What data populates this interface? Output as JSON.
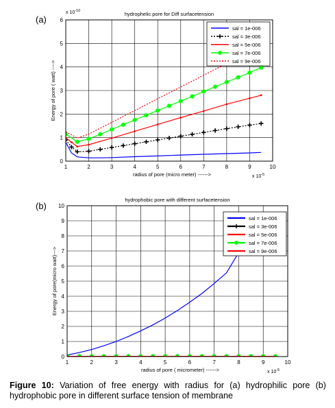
{
  "caption": {
    "label": "Figure 10:",
    "text": "Variation of free energy with radius for (a) hydrophilic pore (b) hydrophobic pore in different surface tension of membrane"
  },
  "colors": {
    "sal_1e-006": "#0000ff",
    "sal_3e-006": "#000000",
    "sal_5e-006": "#ff0000",
    "sal_7e-006": "#00ff00",
    "sal_9e-006": "#ff0000"
  },
  "chart_data": [
    {
      "type": "line",
      "panel_label": "(a)",
      "title": "hydrophelic pore for Diff surfacetension",
      "xlabel": "radius of pore (micro meter) ------>",
      "ylabel": "Energy of pore ( watt) ---->",
      "x_exponent": "x 10",
      "x_exponent_power": "-5",
      "y_exponent": "x 10",
      "y_exponent_power": "-10",
      "xlim": [
        1,
        10
      ],
      "ylim": [
        0,
        6
      ],
      "xticks": [
        "1",
        "2",
        "3",
        "4",
        "5",
        "6",
        "7",
        "8",
        "9",
        "10"
      ],
      "yticks": [
        "0",
        "1",
        "2",
        "3",
        "4",
        "5",
        "6"
      ],
      "grid": true,
      "legend_position": "top-right",
      "series": [
        {
          "name": "sal = 1e-006",
          "color": "#0000ff",
          "style": "solid",
          "marker": "none",
          "x": [
            1,
            1.25,
            1.5,
            2,
            2.5,
            3,
            4,
            5,
            6,
            7,
            8,
            9,
            9.5
          ],
          "y": [
            0.8,
            0.35,
            0.18,
            0.14,
            0.14,
            0.15,
            0.19,
            0.22,
            0.26,
            0.29,
            0.32,
            0.35,
            0.37
          ]
        },
        {
          "name": "sal = 3e-006",
          "color": "#000000",
          "style": "dotted",
          "marker": "plus",
          "x": [
            1,
            1.25,
            1.5,
            2,
            2.5,
            3,
            3.5,
            4,
            4.5,
            5,
            5.5,
            6,
            6.5,
            7,
            7.5,
            8,
            8.5,
            9,
            9.5
          ],
          "y": [
            0.9,
            0.6,
            0.4,
            0.42,
            0.5,
            0.58,
            0.66,
            0.74,
            0.82,
            0.9,
            0.98,
            1.06,
            1.14,
            1.22,
            1.3,
            1.38,
            1.46,
            1.53,
            1.6
          ]
        },
        {
          "name": "sal = 5e-006",
          "color": "#ff0000",
          "style": "solid",
          "marker": "dot",
          "x": [
            1,
            1.25,
            1.5,
            2,
            3,
            4,
            5,
            6,
            7,
            8,
            9,
            9.5
          ],
          "y": [
            1.0,
            0.8,
            0.62,
            0.7,
            0.98,
            1.27,
            1.56,
            1.85,
            2.13,
            2.42,
            2.67,
            2.8
          ]
        },
        {
          "name": "sal = 7e-006",
          "color": "#00ff00",
          "style": "solid",
          "marker": "star",
          "x": [
            1,
            1.5,
            2,
            2.5,
            3,
            3.5,
            4,
            4.5,
            5,
            5.5,
            6,
            6.5,
            7,
            7.5,
            8,
            8.5,
            9,
            9.5
          ],
          "y": [
            1.15,
            0.82,
            0.95,
            1.14,
            1.35,
            1.55,
            1.75,
            1.95,
            2.15,
            2.35,
            2.55,
            2.75,
            2.96,
            3.16,
            3.36,
            3.56,
            3.76,
            3.97
          ]
        },
        {
          "name": "sal = 9e-006",
          "color": "#ff0000",
          "style": "dotted",
          "marker": "none",
          "x": [
            1,
            1.5,
            2,
            3,
            4,
            5,
            6,
            7,
            8,
            8.6
          ],
          "y": [
            1.25,
            0.98,
            1.15,
            1.65,
            2.15,
            2.65,
            3.15,
            3.65,
            4.15,
            4.5
          ]
        }
      ]
    },
    {
      "type": "line",
      "panel_label": "(b)",
      "title": "hydrophobic pore with different surfacetension",
      "xlabel": "radius of pore ( micrometer) ------>",
      "ylabel": "Energy of pore(micro watt)--->",
      "x_exponent": "x 10",
      "x_exponent_power": "-5",
      "xlim": [
        1,
        10
      ],
      "ylim": [
        0,
        10
      ],
      "xticks": [
        "1",
        "2",
        "3",
        "4",
        "5",
        "6",
        "7",
        "8",
        "9",
        "10"
      ],
      "yticks": [
        "0",
        "1",
        "2",
        "3",
        "4",
        "5",
        "6",
        "7",
        "8",
        "9",
        "10"
      ],
      "grid": true,
      "legend_position": "top-right",
      "series": [
        {
          "name": "sal = 1e-006",
          "color": "#0000ff",
          "style": "solid",
          "marker": "none",
          "x": [
            1,
            1.5,
            2,
            2.5,
            3,
            3.5,
            4,
            4.5,
            5,
            5.5,
            6,
            6.5,
            7,
            7.5,
            8
          ],
          "y": [
            0.1,
            0.27,
            0.47,
            0.72,
            1.0,
            1.33,
            1.7,
            2.1,
            2.55,
            3.05,
            3.6,
            4.18,
            4.85,
            5.55,
            6.9
          ]
        },
        {
          "name": "sal = 3e-006",
          "color": "#000000",
          "style": "solid",
          "marker": "plus",
          "x": [
            1,
            1.5,
            2,
            2.5,
            3,
            3.5,
            4,
            4.5,
            5,
            5.5,
            6,
            6.5,
            7,
            7.5,
            8,
            8.5,
            9,
            9.5
          ],
          "y": [
            0.02,
            0.02,
            0.02,
            0.02,
            0.02,
            0.02,
            0.02,
            0.02,
            0.02,
            0.02,
            0.02,
            0.02,
            0.02,
            0.02,
            0.02,
            0.02,
            0.02,
            0.02
          ]
        },
        {
          "name": "sal = 5e-006",
          "color": "#ff0000",
          "style": "solid",
          "marker": "dot",
          "x": [
            1,
            1.5,
            2,
            2.5,
            3,
            3.5,
            4,
            4.5,
            5,
            5.5,
            6,
            6.5,
            7,
            7.5,
            8,
            8.5,
            9,
            9.5
          ],
          "y": [
            0.02,
            0.02,
            0.02,
            0.02,
            0.02,
            0.02,
            0.02,
            0.02,
            0.02,
            0.02,
            0.02,
            0.02,
            0.02,
            0.02,
            0.02,
            0.02,
            0.02,
            0.02
          ]
        },
        {
          "name": "sal = 7e-006",
          "color": "#00ff00",
          "style": "solid",
          "marker": "star",
          "x": [
            1,
            1.5,
            2,
            2.5,
            3,
            3.5,
            4,
            4.5,
            5,
            5.5,
            6,
            6.5,
            7,
            7.5,
            8,
            8.5,
            9,
            9.5
          ],
          "y": [
            0.02,
            0.02,
            0.02,
            0.02,
            0.02,
            0.02,
            0.02,
            0.02,
            0.02,
            0.02,
            0.02,
            0.02,
            0.02,
            0.02,
            0.02,
            0.02,
            0.02,
            0.02
          ]
        },
        {
          "name": "sal = 9e-006",
          "color": "#ff0000",
          "style": "solid",
          "marker": "none",
          "x": [
            1,
            9.5
          ],
          "y": [
            0.02,
            0.02
          ]
        }
      ]
    }
  ]
}
